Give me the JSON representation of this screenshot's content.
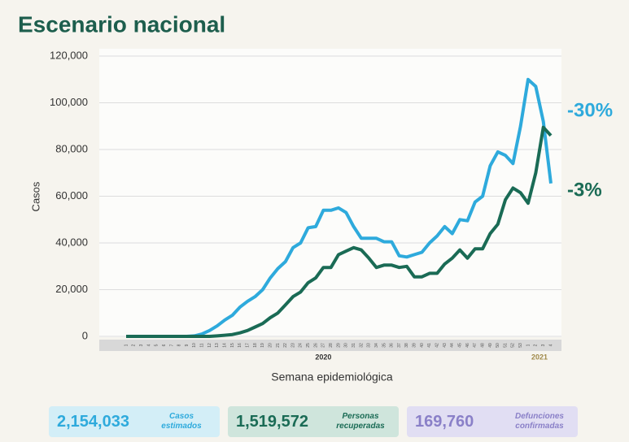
{
  "title": "Escenario nacional",
  "chart_data": {
    "type": "line",
    "ylabel": "Casos",
    "xlabel": "Semana epidemiológica",
    "categories": [
      "1",
      "2",
      "3",
      "4",
      "5",
      "6",
      "7",
      "8",
      "9",
      "10",
      "11",
      "12",
      "13",
      "14",
      "15",
      "16",
      "17",
      "18",
      "19",
      "20",
      "21",
      "22",
      "23",
      "24",
      "25",
      "26",
      "27",
      "28",
      "29",
      "30",
      "31",
      "32",
      "33",
      "34",
      "35",
      "36",
      "37",
      "38",
      "39",
      "40",
      "41",
      "42",
      "43",
      "44",
      "45",
      "46",
      "47",
      "48",
      "49",
      "50",
      "51",
      "52",
      "53",
      "1",
      "2",
      "3",
      "4"
    ],
    "year_labels": [
      "2020",
      "2021"
    ],
    "series": [
      {
        "color": "#2eaadc",
        "label": "-30%",
        "values": [
          0,
          0,
          0,
          0,
          0,
          0,
          0,
          0,
          0,
          200,
          1000,
          2500,
          4500,
          7000,
          9000,
          12500,
          15000,
          17000,
          20000,
          25000,
          29000,
          32000,
          38000,
          40000,
          46500,
          47000,
          54000,
          54000,
          55000,
          53000,
          47000,
          42000,
          42000,
          42000,
          40500,
          40500,
          34500,
          34000,
          35000,
          36000,
          40000,
          43000,
          47000,
          44000,
          50000,
          49500,
          57500,
          60000,
          73000,
          79000,
          77500,
          74000,
          90000,
          110000,
          107000,
          92000,
          65500
        ]
      },
      {
        "color": "#1a6b55",
        "label": "-3%",
        "values": [
          0,
          0,
          0,
          0,
          0,
          0,
          0,
          0,
          0,
          0,
          0,
          0,
          200,
          500,
          800,
          1500,
          2500,
          4000,
          5500,
          8000,
          10000,
          13500,
          17000,
          19000,
          23000,
          25000,
          29500,
          29500,
          35000,
          36500,
          38000,
          37000,
          33500,
          29500,
          30500,
          30500,
          29500,
          30000,
          25500,
          25500,
          27000,
          27000,
          31000,
          33500,
          37000,
          33500,
          37500,
          37500,
          44000,
          48000,
          58500,
          63500,
          61500,
          57000,
          70000,
          89500,
          86000
        ]
      }
    ],
    "ylim": [
      0,
      120000
    ],
    "yticks": [
      0,
      {
        "value": 20000,
        "label": "20,000"
      },
      {
        "value": 40000,
        "label": "40,000"
      },
      {
        "value": 60000,
        "label": "60,000"
      },
      {
        "value": 80000,
        "label": "80,000"
      },
      {
        "value": 100000,
        "label": "100,000"
      },
      {
        "value": 120000,
        "label": "120,000"
      }
    ],
    "grid": true
  },
  "summary": [
    {
      "value": "2,154,033",
      "label": "Casos estimados"
    },
    {
      "value": "1,519,572",
      "label": "Personas recuperadas"
    },
    {
      "value": "169,760",
      "label": "Defunciones confirmadas"
    }
  ]
}
